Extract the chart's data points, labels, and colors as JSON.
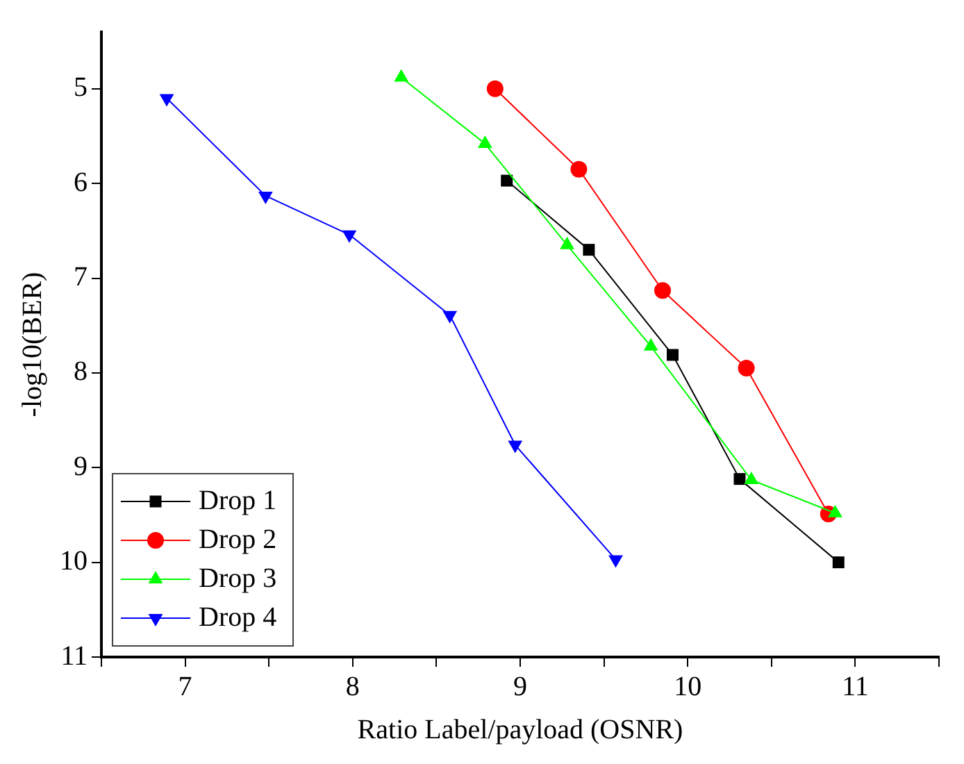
{
  "chart_data": {
    "type": "line",
    "xlabel": "Ratio Label/payload (OSNR)",
    "ylabel": "-log10(BER)",
    "xlim": [
      6.5,
      11.5
    ],
    "xticks": [
      {
        "value": 6.5,
        "label": null
      },
      7,
      {
        "value": 7.5,
        "label": null
      },
      8,
      {
        "value": 8.5,
        "label": null
      },
      9,
      {
        "value": 9.5,
        "label": null
      },
      10,
      {
        "value": 10.5,
        "label": null
      },
      11,
      {
        "value": 11.5,
        "label": null
      }
    ],
    "ylim": [
      11,
      4.4
    ],
    "yticks": [
      5,
      6,
      7,
      8,
      9,
      10,
      11
    ],
    "grid": false,
    "legend": "bottom left",
    "line_style": "solid",
    "series": [
      {
        "name": "Drop 1",
        "color": "#000000",
        "marker": "square",
        "x": [
          8.92,
          9.41,
          9.91,
          10.31,
          10.9
        ],
        "values": [
          5.97,
          6.7,
          7.81,
          9.12,
          10.0
        ]
      },
      {
        "name": "Drop 2",
        "color": "#ff0000",
        "marker": "circle",
        "x": [
          8.85,
          9.35,
          9.85,
          10.35,
          10.84
        ],
        "values": [
          5.0,
          5.85,
          7.13,
          7.95,
          9.49
        ]
      },
      {
        "name": "Drop 3",
        "color": "#00ff00",
        "marker": "triangle",
        "x": [
          8.29,
          8.79,
          9.28,
          9.78,
          10.38,
          10.88
        ],
        "values": [
          4.88,
          5.58,
          6.65,
          7.72,
          9.13,
          9.48
        ]
      },
      {
        "name": "Drop 4",
        "color": "#0000ff",
        "marker": "triangle-down",
        "x": [
          6.89,
          7.48,
          7.98,
          8.58,
          8.97,
          9.57
        ],
        "values": [
          5.1,
          6.13,
          6.54,
          7.39,
          8.76,
          9.97
        ]
      }
    ]
  }
}
